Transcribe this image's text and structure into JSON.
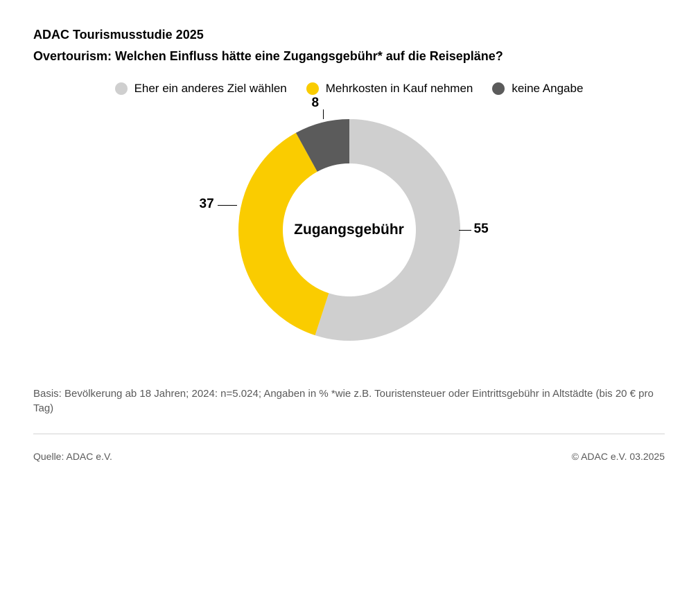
{
  "header": {
    "title": "ADAC Tourismusstudie 2025",
    "subtitle": "Overtourism: Welchen Einfluss hätte eine Zugangsgebühr* auf die Reisepläne?"
  },
  "chart": {
    "type": "donut",
    "center_label": "Zugangsgebühr",
    "outer_radius": 160,
    "inner_radius": 96,
    "start_angle_deg": 0,
    "background_color": "#ffffff",
    "value_fontsize": 19,
    "center_fontsize": 21,
    "legend_fontsize": 17,
    "series": [
      {
        "label": "Eher ein anderes Ziel wählen",
        "value": 55,
        "color": "#cfcfcf"
      },
      {
        "label": "Mehrkosten in Kauf nehmen",
        "value": 37,
        "color": "#facc00"
      },
      {
        "label": "keine Angabe",
        "value": 8,
        "color": "#5b5b5b"
      }
    ]
  },
  "basis_text": "Basis: Bevölkerung ab 18 Jahren; 2024: n=5.024; Angaben in % *wie z.B. Touristensteuer oder Eintrittsgebühr in Altstädte (bis 20 € pro Tag)",
  "footer": {
    "source": "Quelle: ADAC e.V.",
    "copyright": "© ADAC e.V. 03.2025"
  }
}
